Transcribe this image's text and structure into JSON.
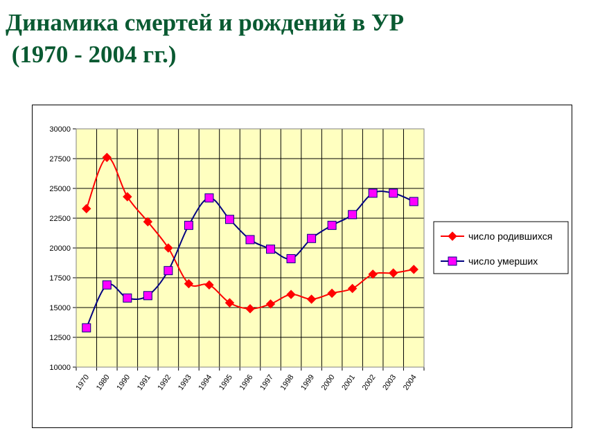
{
  "title": {
    "line1": "Динамика смертей и рождений в УР",
    "line2": " (1970 - 2004 гг.)"
  },
  "chart_data": {
    "type": "line",
    "categories": [
      "1970",
      "1980",
      "1990",
      "1991",
      "1992",
      "1993",
      "1994",
      "1995",
      "1996",
      "1997",
      "1998",
      "1999",
      "2000",
      "2001",
      "2002",
      "2003",
      "2004"
    ],
    "series": [
      {
        "name": "число родившихся",
        "color": "#ff0000",
        "marker": "diamond",
        "values": [
          23300,
          27600,
          24300,
          22200,
          20000,
          17000,
          16900,
          15400,
          14900,
          15300,
          16100,
          15700,
          16200,
          16600,
          17800,
          17900,
          18200
        ]
      },
      {
        "name": "число умерших",
        "color": "#000080",
        "markerFill": "#ff00ff",
        "marker": "square",
        "values": [
          13300,
          16900,
          15800,
          16000,
          18100,
          21900,
          24200,
          22400,
          20700,
          19900,
          19100,
          20800,
          21900,
          22800,
          24600,
          24600,
          23900
        ]
      }
    ],
    "y_ticks": [
      "10000",
      "12500",
      "15000",
      "17500",
      "20000",
      "22500",
      "25000",
      "27500",
      "30000"
    ],
    "ylim": [
      10000,
      30000
    ],
    "grid": true,
    "plot_background": "#ffffc0",
    "legend_position": "right"
  }
}
